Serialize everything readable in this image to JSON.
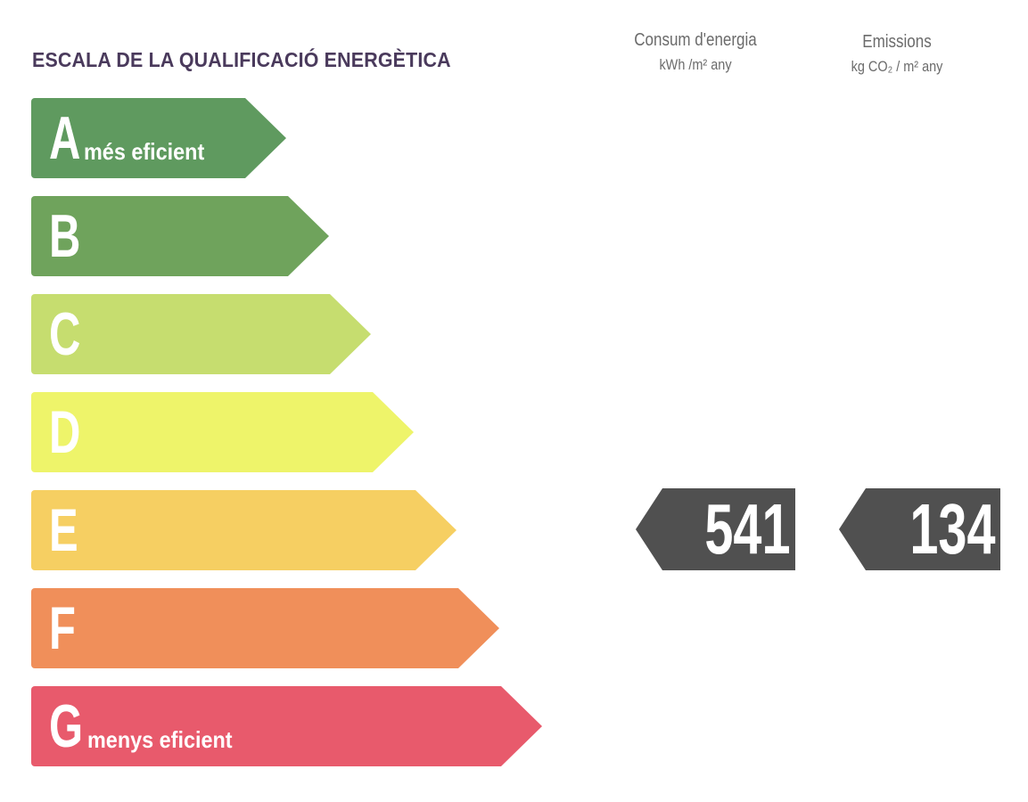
{
  "title": "ESCALA DE LA QUALIFICACIÓ ENERGÈTICA",
  "columns": {
    "consum": {
      "label": "Consum d'energia",
      "unit": "kWh /m² any"
    },
    "emissions": {
      "label": "Emissions",
      "unit": "kg CO₂ / m² any"
    }
  },
  "scale": [
    {
      "letter": "A",
      "desc": "més eficient",
      "color": "#5f9a5f"
    },
    {
      "letter": "B",
      "desc": "",
      "color": "#6fa35c"
    },
    {
      "letter": "C",
      "desc": "",
      "color": "#c6dd6f"
    },
    {
      "letter": "D",
      "desc": "",
      "color": "#eef46a"
    },
    {
      "letter": "E",
      "desc": "",
      "color": "#f6cf62"
    },
    {
      "letter": "F",
      "desc": "",
      "color": "#f08f5a"
    },
    {
      "letter": "G",
      "desc": "menys eficient",
      "color": "#e85a6c"
    }
  ],
  "rating": {
    "consum_value": "541",
    "emissions_value": "134",
    "tag_color": "#505050"
  }
}
